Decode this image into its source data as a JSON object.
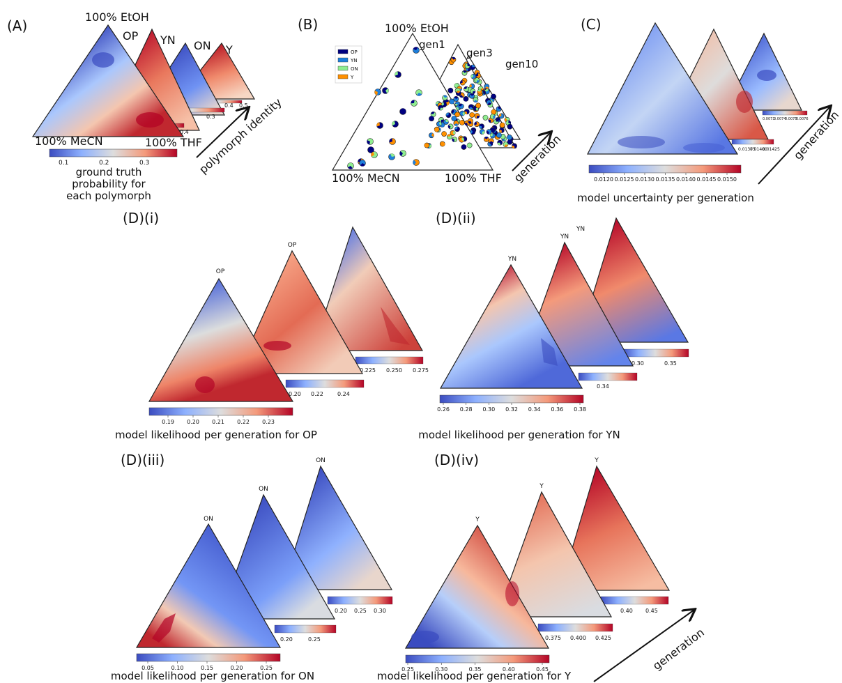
{
  "colors": {
    "low": "#3b4cc0",
    "mid": "#dddddd",
    "high": "#b40426"
  },
  "panels": {
    "A": {
      "label": "(A)",
      "vertex_top": "100% EtOH",
      "vertex_left": "100% MeCN",
      "vertex_right": "100% THF",
      "polymorphs": [
        "OP",
        "YN",
        "ON",
        "Y"
      ],
      "arrow_label": "polymorph identity",
      "colorbar_ticks": [
        "0.1",
        "0.2",
        "0.3"
      ],
      "colorbar_label_lines": [
        "ground truth",
        "probability for",
        "each polymorph"
      ],
      "behind_ticks": [
        [
          "0.4"
        ],
        [
          "0.3"
        ],
        [
          "0.4",
          "0.5"
        ]
      ]
    },
    "B": {
      "label": "(B)",
      "vertex_top": "100% EtOH",
      "vertex_left": "100% MeCN",
      "vertex_right": "100% THF",
      "generations": [
        "gen1",
        "gen3",
        "gen10"
      ],
      "arrow_label": "generation",
      "legend": [
        {
          "name": "OP",
          "color": "#000080"
        },
        {
          "name": "YN",
          "color": "#1e7fdb"
        },
        {
          "name": "ON",
          "color": "#90ee90"
        },
        {
          "name": "Y",
          "color": "#ff9000"
        }
      ]
    },
    "C": {
      "label": "(C)",
      "arrow_label": "generation",
      "colorbar_ticks": [
        "0.0120",
        "0.0125",
        "0.0130",
        "0.0135",
        "0.0140",
        "0.0145",
        "0.0150"
      ],
      "behind_ticks": [
        [
          "0.01375",
          "0.01400",
          "0.01425"
        ],
        [
          "0.0073",
          "0.0074",
          "0.0075",
          "0.0076"
        ]
      ],
      "caption": "model uncertainty per generation"
    },
    "Di": {
      "label": "(D)(i)",
      "title": "OP",
      "colorbar_ticks": [
        "0.19",
        "0.20",
        "0.21",
        "0.22",
        "0.23"
      ],
      "behind_ticks": [
        [
          "0.20",
          "0.22",
          "0.24"
        ],
        [
          "0.225",
          "0.250",
          "0.275"
        ]
      ],
      "caption": "model likelihood per generation for OP"
    },
    "Dii": {
      "label": "(D)(ii)",
      "title": "YN",
      "colorbar_ticks": [
        "0.26",
        "0.28",
        "0.30",
        "0.32",
        "0.34",
        "0.36",
        "0.38"
      ],
      "behind_ticks": [
        [
          "0.34"
        ],
        [
          "0.30",
          "0.35"
        ]
      ],
      "caption": "model likelihood per generation for YN"
    },
    "Diii": {
      "label": "(D)(iii)",
      "title": "ON",
      "colorbar_ticks": [
        "0.05",
        "0.10",
        "0.15",
        "0.20",
        "0.25"
      ],
      "behind_ticks": [
        [
          "0.20",
          "0.25"
        ],
        [
          "0.20",
          "0.25",
          "0.30"
        ]
      ],
      "caption": "model likelihood per generation for ON"
    },
    "Div": {
      "label": "(D)(iv)",
      "title": "Y",
      "colorbar_ticks": [
        "0.25",
        "0.30",
        "0.35",
        "0.40",
        "0.45"
      ],
      "behind_ticks": [
        [
          "0.375",
          "0.400",
          "0.425"
        ],
        [
          "0.40",
          "0.45"
        ]
      ],
      "caption": "model likelihood per generation for Y",
      "arrow_label": "generation"
    }
  },
  "chart_data": [
    {
      "type": "heatmap",
      "panel": "A",
      "kind": "ternary contour",
      "vertices": [
        "100% EtOH",
        "100% MeCN",
        "100% THF"
      ],
      "series": [
        {
          "name": "OP"
        },
        {
          "name": "YN"
        },
        {
          "name": "ON"
        },
        {
          "name": "Y"
        }
      ],
      "colorbar_ticks": [
        0.1,
        0.2,
        0.3
      ],
      "colorbar_label": "ground truth probability for each polymorph"
    },
    {
      "type": "scatter",
      "panel": "B",
      "kind": "ternary scatter",
      "vertices": [
        "100% EtOH",
        "100% MeCN",
        "100% THF"
      ],
      "series": [
        {
          "name": "OP"
        },
        {
          "name": "YN"
        },
        {
          "name": "ON"
        },
        {
          "name": "Y"
        }
      ],
      "generations": [
        "gen1",
        "gen3",
        "gen10"
      ]
    },
    {
      "type": "heatmap",
      "panel": "C",
      "kind": "ternary contour",
      "colorbar_ticks": [
        0.012,
        0.0125,
        0.013,
        0.0135,
        0.014,
        0.0145,
        0.015
      ],
      "caption": "model uncertainty per generation"
    },
    {
      "type": "heatmap",
      "panel": "D(i)",
      "series": [
        {
          "name": "OP"
        }
      ],
      "colorbar_ticks": [
        0.19,
        0.2,
        0.21,
        0.22,
        0.23
      ],
      "caption": "model likelihood per generation for OP"
    },
    {
      "type": "heatmap",
      "panel": "D(ii)",
      "series": [
        {
          "name": "YN"
        }
      ],
      "colorbar_ticks": [
        0.26,
        0.28,
        0.3,
        0.32,
        0.34,
        0.36,
        0.38
      ],
      "caption": "model likelihood per generation for YN"
    },
    {
      "type": "heatmap",
      "panel": "D(iii)",
      "series": [
        {
          "name": "ON"
        }
      ],
      "colorbar_ticks": [
        0.05,
        0.1,
        0.15,
        0.2,
        0.25
      ],
      "caption": "model likelihood per generation for ON"
    },
    {
      "type": "heatmap",
      "panel": "D(iv)",
      "series": [
        {
          "name": "Y"
        }
      ],
      "colorbar_ticks": [
        0.25,
        0.3,
        0.35,
        0.4,
        0.45
      ],
      "caption": "model likelihood per generation for Y"
    }
  ]
}
